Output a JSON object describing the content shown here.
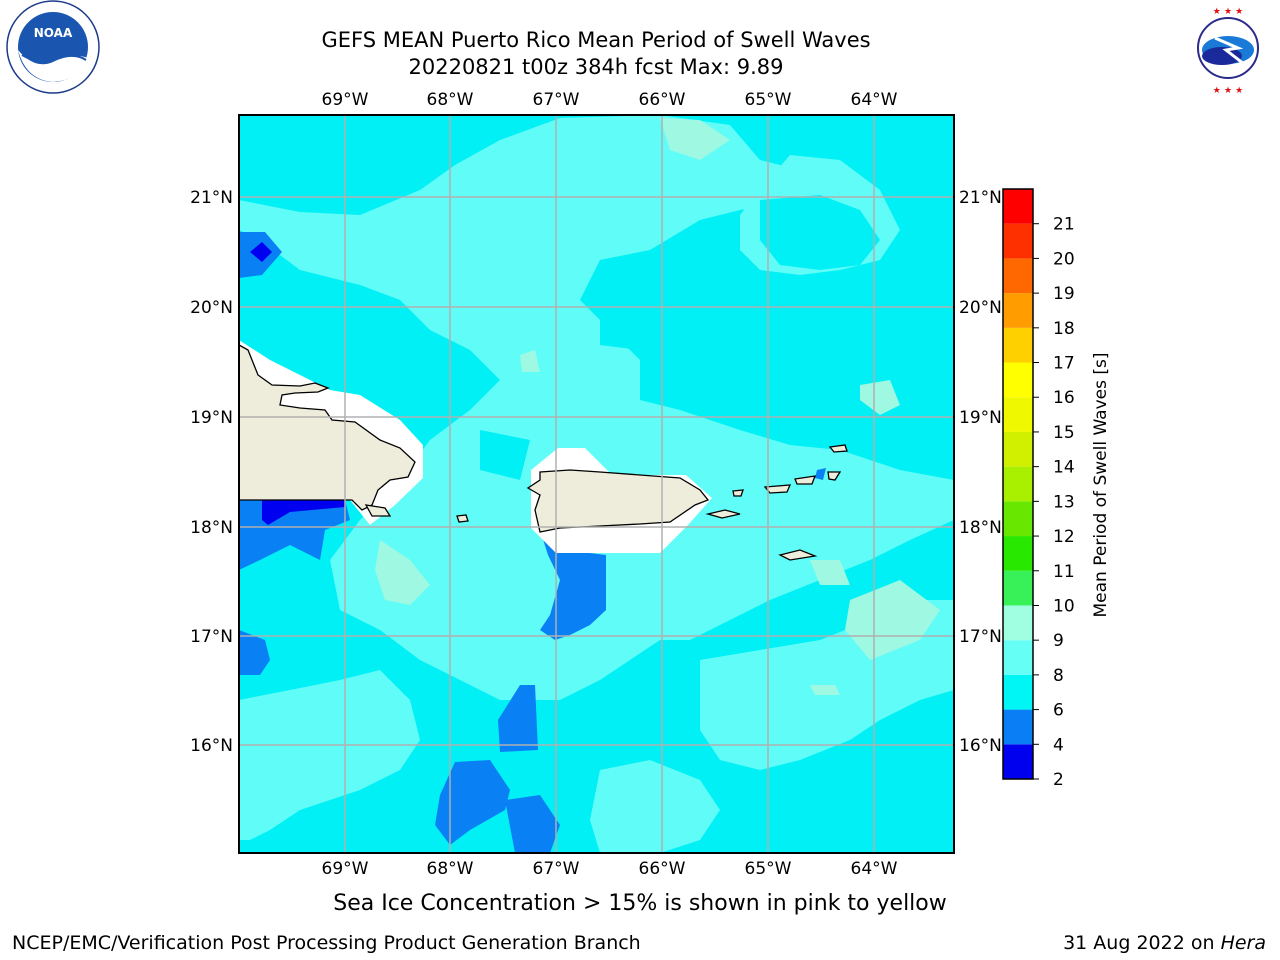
{
  "title": {
    "line1": "GEFS MEAN Puerto Rico Mean Period of Swell Waves",
    "line2": "20220821 t00z 384h fcst   Max: 9.89"
  },
  "map": {
    "lon_labels": [
      "69°W",
      "68°W",
      "67°W",
      "66°W",
      "65°W",
      "64°W"
    ],
    "lat_labels": [
      "21°N",
      "20°N",
      "19°N",
      "18°N",
      "17°N",
      "16°N"
    ],
    "field_colors": {
      "band_2_4": "#0000f0",
      "band_4_6": "#0a80f5",
      "band_6_8": "#00f0f5",
      "band_8_9": "#60fcf8",
      "band_9_10": "#9ef8e2",
      "land": "#eeecda",
      "no_data": "#ffffff",
      "gridline": "#b0b0b0"
    }
  },
  "colorbar": {
    "label": "Mean Period of Swell Waves [s]",
    "ticks": [
      "2",
      "4",
      "6",
      "8",
      "9",
      "10",
      "11",
      "12",
      "13",
      "14",
      "15",
      "16",
      "17",
      "18",
      "19",
      "20",
      "21"
    ],
    "colors": [
      "#0000ee",
      "#0a7ff5",
      "#00f5f5",
      "#66fff5",
      "#a0ffe0",
      "#38f058",
      "#28e800",
      "#68e800",
      "#a8f000",
      "#d0f000",
      "#f0f800",
      "#ffff00",
      "#ffd000",
      "#ff9c00",
      "#ff6800",
      "#ff3000",
      "#ff0000"
    ]
  },
  "logos": {
    "noaa": "NOAA",
    "noaa_ring": "NATIONAL OCEANIC AND ATMOSPHERIC ADMINISTRATION · U.S. DEPARTMENT OF COMMERCE",
    "nws_ring": "NATIONAL WEATHER SERVICE"
  },
  "note": "Sea Ice Concentration > 15% is shown in pink to yellow",
  "footer": {
    "left": "NCEP/EMC/Verification Post Processing Product Generation Branch",
    "right_date": "31 Aug 2022 on ",
    "right_host": "Hera"
  }
}
